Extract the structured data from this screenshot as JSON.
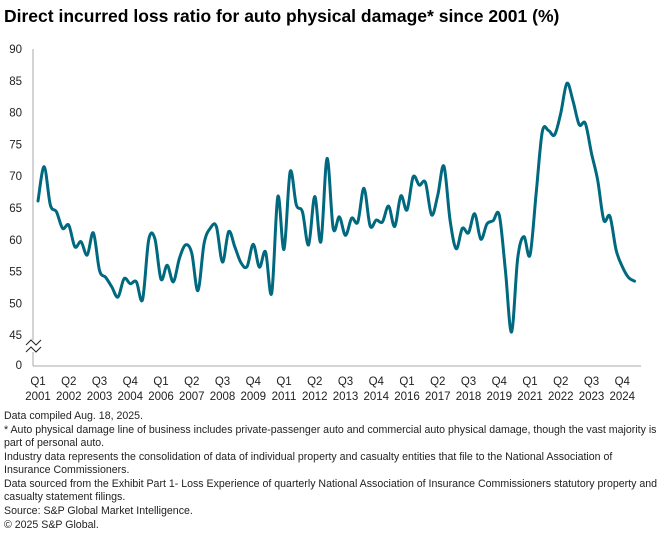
{
  "chart_data": {
    "type": "line",
    "title": "Direct incurred loss ratio for auto physical damage* since 2001 (%)",
    "xlabel": "",
    "ylabel": "",
    "ylim": [
      45,
      90
    ],
    "y_axis_break": true,
    "y_ticks": [
      "0",
      "45",
      "50",
      "55",
      "60",
      "65",
      "70",
      "75",
      "80",
      "85",
      "90"
    ],
    "x_tick_labels": [
      {
        "q": "Q1",
        "y": "2001",
        "index": 0
      },
      {
        "q": "Q2",
        "y": "2002",
        "index": 5
      },
      {
        "q": "Q3",
        "y": "2003",
        "index": 10
      },
      {
        "q": "Q4",
        "y": "2004",
        "index": 15
      },
      {
        "q": "Q1",
        "y": "2006",
        "index": 20
      },
      {
        "q": "Q2",
        "y": "2007",
        "index": 25
      },
      {
        "q": "Q3",
        "y": "2008",
        "index": 30
      },
      {
        "q": "Q4",
        "y": "2009",
        "index": 35
      },
      {
        "q": "Q1",
        "y": "2011",
        "index": 40
      },
      {
        "q": "Q2",
        "y": "2012",
        "index": 45
      },
      {
        "q": "Q3",
        "y": "2013",
        "index": 50
      },
      {
        "q": "Q4",
        "y": "2014",
        "index": 55
      },
      {
        "q": "Q1",
        "y": "2016",
        "index": 60
      },
      {
        "q": "Q2",
        "y": "2017",
        "index": 65
      },
      {
        "q": "Q3",
        "y": "2018",
        "index": 70
      },
      {
        "q": "Q4",
        "y": "2019",
        "index": 75
      },
      {
        "q": "Q1",
        "y": "2021",
        "index": 80
      },
      {
        "q": "Q2",
        "y": "2022",
        "index": 85
      },
      {
        "q": "Q3",
        "y": "2023",
        "index": 90
      },
      {
        "q": "Q4",
        "y": "2024",
        "index": 95
      }
    ],
    "x_start": "Q1 2001",
    "x_end": "Q2 2025",
    "grid": false,
    "line_color": "#00697f",
    "series": [
      {
        "values": [
          66.1,
          71.5,
          65.5,
          64.4,
          61.8,
          62.3,
          58.9,
          59.7,
          57.6,
          61.1,
          55.2,
          54.1,
          52.6,
          51.0,
          53.9,
          53.1,
          53.4,
          50.6,
          60.0,
          60.2,
          53.8,
          56.0,
          53.4,
          57.1,
          59.2,
          57.9,
          52.0,
          59.4,
          61.8,
          62.1,
          56.5,
          61.3,
          58.9,
          56.4,
          55.8,
          59.3,
          55.7,
          58.1,
          51.6,
          66.8,
          58.5,
          70.7,
          65.5,
          64.4,
          59.2,
          66.8,
          59.7,
          72.8,
          61.8,
          63.6,
          60.7,
          63.4,
          62.8,
          68.1,
          62.2,
          63.1,
          62.8,
          65.3,
          62.1,
          66.9,
          64.7,
          69.9,
          68.6,
          69.0,
          63.9,
          67.0,
          71.6,
          63.1,
          58.6,
          61.8,
          61.1,
          64.1,
          60.1,
          62.5,
          63.0,
          63.9,
          55.2,
          45.5,
          57.1,
          60.5,
          57.6,
          67.3,
          77.0,
          77.2,
          76.5,
          79.9,
          84.6,
          81.8,
          78.1,
          78.3,
          73.6,
          69.4,
          63.1,
          63.7,
          58.4,
          55.8,
          54.1,
          53.5
        ]
      }
    ]
  },
  "notes": [
    "Data compiled Aug. 18, 2025.",
    "* Auto physical damage line of business includes private-passenger auto and commercial auto physical damage, though the vast majority is part of personal auto.",
    "Industry data represents the consolidation of data of individual property and casualty entities that file to the National Association of Insurance Commissioners.",
    "Data sourced from the Exhibit Part 1- Loss Experience of quarterly National Association of Insurance Commissioners statutory property and casualty statement filings.",
    "Source: S&P Global Market Intelligence.",
    "© 2025 S&P Global."
  ]
}
